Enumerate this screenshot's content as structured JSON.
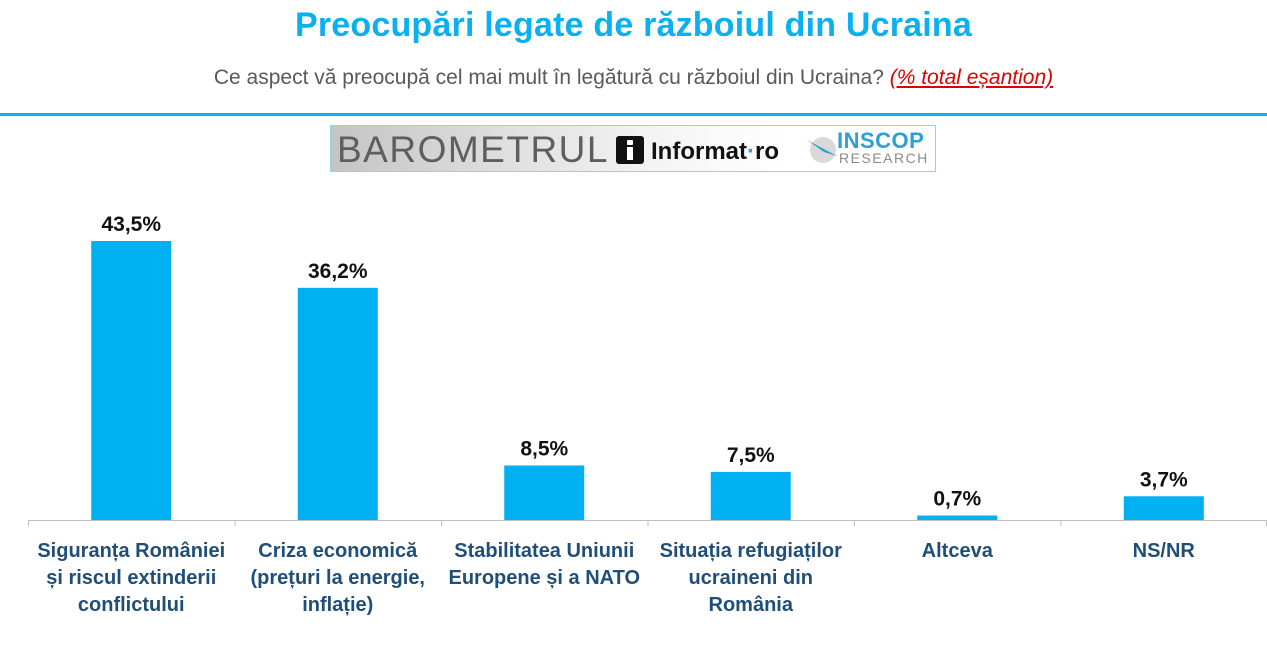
{
  "colors": {
    "title": "#0ab0ef",
    "bar": "#00b0f0",
    "category_text": "#1f4e79",
    "note": "#e00000",
    "rule": "#0ab0ef",
    "inscop": "#2d9fd6"
  },
  "header": {
    "title": "Preocupări legate de războiul din Ucraina",
    "subtitle": "Ce aspect vă preocupă cel mai mult în legătură cu războiul din Ucraina? ",
    "subtitle_note": "(% total eșantion)"
  },
  "logo": {
    "barometrul": "BAROMETRUL",
    "informat": "Informat",
    "informat_dot": "·",
    "informat_ro": "ro",
    "inscop": "INSCOP",
    "research": "RESEARCH"
  },
  "chart_data": {
    "type": "bar",
    "categories": [
      "Siguranța României și riscul extinderii conflictului",
      "Criza economică (prețuri la energie, inflație)",
      "Stabilitatea Uniunii Europene și a NATO",
      "Situația refugiaților ucraineni din România",
      "Altceva",
      "NS/NR"
    ],
    "values": [
      43.5,
      36.2,
      8.5,
      7.5,
      0.7,
      3.7
    ],
    "value_labels": [
      "43,5%",
      "36,2%",
      "8,5%",
      "7,5%",
      "0,7%",
      "3,7%"
    ],
    "ylim": [
      0,
      45
    ],
    "grid": false,
    "legend": "none"
  }
}
